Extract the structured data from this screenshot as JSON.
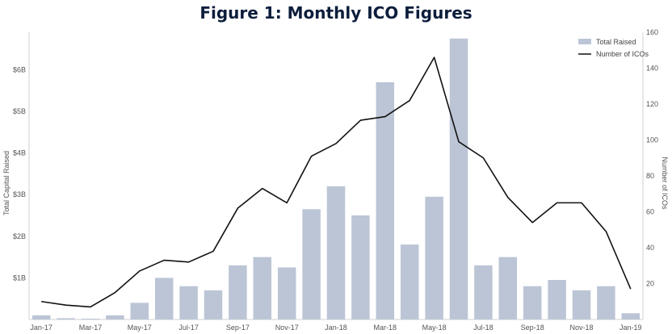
{
  "chart_data": {
    "type": "bar",
    "title": "Figure 1: Monthly ICO Figures",
    "categories": [
      "Jan-17",
      "Feb-17",
      "Mar-17",
      "Apr-17",
      "May-17",
      "Jun-17",
      "Jul-17",
      "Aug-17",
      "Sep-17",
      "Oct-17",
      "Nov-17",
      "Dec-17",
      "Jan-18",
      "Feb-18",
      "Mar-18",
      "Apr-18",
      "May-18",
      "Jun-18",
      "Jul-18",
      "Aug-18",
      "Sep-18",
      "Oct-18",
      "Nov-18",
      "Dec-18",
      "Jan-19"
    ],
    "x_tick_labels": [
      "Jan-17",
      "Mar-17",
      "May-17",
      "Jul-17",
      "Sep-17",
      "Nov-17",
      "Jan-18",
      "Mar-18",
      "May-18",
      "Jul-18",
      "Sep-18",
      "Nov-18",
      "Jan-19"
    ],
    "series": [
      {
        "name": "Total Raised",
        "type": "bar",
        "axis": "left",
        "color": "#bcc5d6",
        "values": [
          0.1,
          0.03,
          0.02,
          0.1,
          0.4,
          1.0,
          0.8,
          0.7,
          1.3,
          1.5,
          1.25,
          2.65,
          3.2,
          2.5,
          5.7,
          1.8,
          2.95,
          6.75,
          1.3,
          1.5,
          0.8,
          0.95,
          0.7,
          0.8,
          0.15
        ]
      },
      {
        "name": "Number of ICOs",
        "type": "line",
        "axis": "right",
        "color": "#111111",
        "values": [
          10,
          8,
          7,
          15,
          27,
          33,
          32,
          38,
          62,
          73,
          65,
          91,
          98,
          111,
          113,
          122,
          146,
          99,
          90,
          68,
          54,
          65,
          65,
          49,
          17
        ]
      }
    ],
    "ylabel": "Total Capital Raised",
    "ylim": [
      0,
      6.9
    ],
    "y_ticks": [
      1,
      2,
      3,
      4,
      5,
      6
    ],
    "y_tick_labels": [
      "$1B",
      "$2B",
      "$3B",
      "$4B",
      "$5B",
      "$6B"
    ],
    "y2label": "Number of ICOs",
    "y2lim": [
      0,
      160
    ],
    "y2_ticks": [
      20,
      40,
      60,
      80,
      100,
      120,
      140,
      160
    ],
    "y2_tick_labels": [
      "20",
      "40",
      "60",
      "80",
      "100",
      "120",
      "140",
      "160"
    ],
    "legend_position": "top-right",
    "grid": false
  }
}
